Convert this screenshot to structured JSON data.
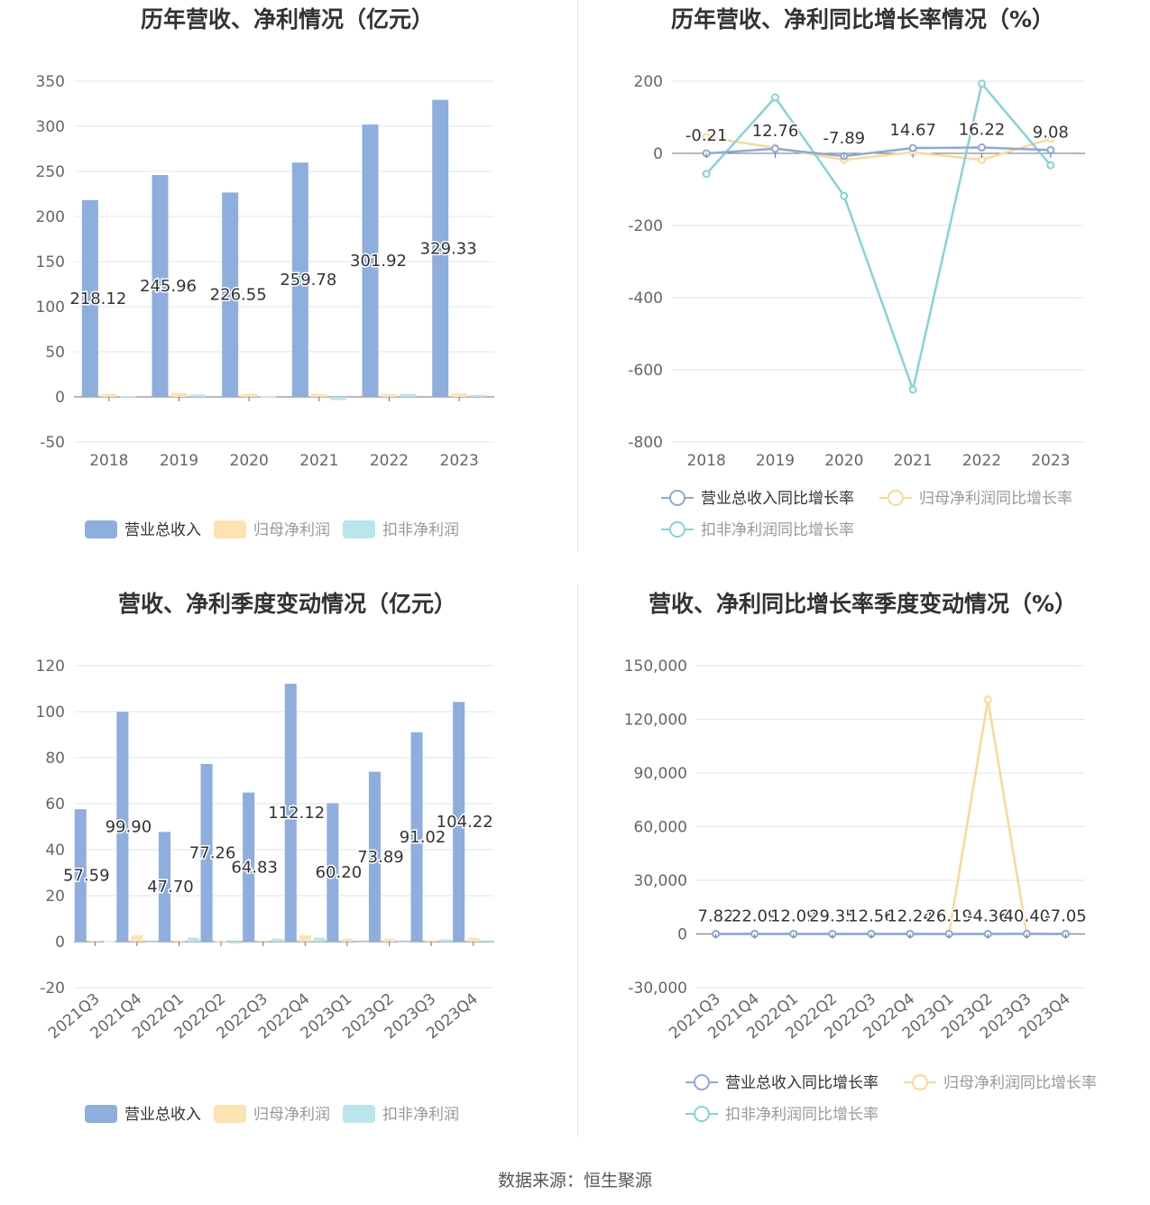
{
  "footer": {
    "source": "数据来源：恒生聚源"
  },
  "colors": {
    "revenue": "#8eaedd",
    "parent_profit": "#fde3b2",
    "deducted_profit": "#b9e6ea",
    "revenue_line": "#8da8db",
    "parent_line": "#fcd894",
    "deducted_line": "#86d3d6"
  },
  "chart_data": [
    {
      "type": "bar",
      "title": "历年营收、净利情况（亿元）",
      "categories": [
        "2018",
        "2019",
        "2020",
        "2021",
        "2022",
        "2023"
      ],
      "ylim": [
        -50,
        350
      ],
      "yticks": [
        "-50",
        "0",
        "50",
        "100",
        "150",
        "200",
        "250",
        "300",
        "350"
      ],
      "grid": true,
      "legend": "bottom",
      "series": [
        {
          "name": "营业总收入",
          "values": [
            218.12,
            245.96,
            226.55,
            259.78,
            301.92,
            329.33
          ],
          "labels": [
            "218.12",
            "245.96",
            "226.55",
            "259.78",
            "301.92",
            "329.33"
          ]
        },
        {
          "name": "归母净利润",
          "values": [
            3.2,
            4.3,
            3.4,
            3.5,
            3.0,
            4.0
          ]
        },
        {
          "name": "扣非净利润",
          "values": [
            0.8,
            2.5,
            0.7,
            -3.5,
            3.2,
            2.0
          ]
        }
      ]
    },
    {
      "type": "line",
      "title": "历年营收、净利同比增长率情况（%）",
      "categories": [
        "2018",
        "2019",
        "2020",
        "2021",
        "2022",
        "2023"
      ],
      "ylim": [
        -800,
        200
      ],
      "yticks": [
        "-800",
        "-600",
        "-400",
        "-200",
        "0",
        "200"
      ],
      "grid": true,
      "legend": "bottom",
      "series": [
        {
          "name": "营业总收入同比增长率",
          "values": [
            -0.21,
            12.76,
            -7.89,
            14.67,
            16.22,
            9.08
          ],
          "labels": [
            "-0.21",
            "12.76",
            "-7.89",
            "14.67",
            "16.22",
            "9.08"
          ]
        },
        {
          "name": "归母净利润同比增长率",
          "values": [
            45,
            15,
            -18,
            3,
            -18,
            40
          ]
        },
        {
          "name": "扣非净利润同比增长率",
          "values": [
            -57,
            155,
            -118,
            -655,
            193,
            -33
          ]
        }
      ]
    },
    {
      "type": "bar",
      "title": "营收、净利季度变动情况（亿元）",
      "categories": [
        "2021Q3",
        "2021Q4",
        "2022Q1",
        "2022Q2",
        "2022Q3",
        "2022Q4",
        "2023Q1",
        "2023Q2",
        "2023Q3",
        "2023Q4"
      ],
      "ylim": [
        -20,
        120
      ],
      "yticks": [
        "-20",
        "0",
        "20",
        "40",
        "60",
        "80",
        "100",
        "120"
      ],
      "grid": true,
      "legend": "bottom",
      "series": [
        {
          "name": "营业总收入",
          "values": [
            57.59,
            99.9,
            47.7,
            77.26,
            64.83,
            112.12,
            60.2,
            73.89,
            91.02,
            104.22
          ],
          "labels": [
            "57.59",
            "99.90",
            "47.70",
            "77.26",
            "64.83",
            "112.12",
            "60.20",
            "73.89",
            "91.02",
            "104.22"
          ]
        },
        {
          "name": "归母净利润",
          "values": [
            0.4,
            2.8,
            0.5,
            0.3,
            0.5,
            2.8,
            1.2,
            1.2,
            0.6,
            1.7
          ]
        },
        {
          "name": "扣非净利润",
          "values": [
            0.2,
            -0.4,
            1.7,
            -0.9,
            1.3,
            1.7,
            -0.2,
            -0.2,
            1.0,
            0.6
          ]
        }
      ]
    },
    {
      "type": "line",
      "title": "营收、净利同比增长率季度变动情况（%）",
      "categories": [
        "2021Q3",
        "2021Q4",
        "2022Q1",
        "2022Q2",
        "2022Q3",
        "2022Q4",
        "2023Q1",
        "2023Q2",
        "2023Q3",
        "2023Q4"
      ],
      "ylim": [
        -30000,
        150000
      ],
      "yticks": [
        "-30,000",
        "0",
        "30,000",
        "60,000",
        "90,000",
        "120,000",
        "150,000"
      ],
      "grid": true,
      "legend": "bottom",
      "series": [
        {
          "name": "营业总收入同比增长率",
          "values": [
            7.82,
            22.09,
            12.09,
            29.35,
            12.56,
            12.24,
            26.19,
            -4.36,
            40.4,
            -7.05
          ],
          "labels": [
            "7.82",
            "22.09",
            "12.09",
            "29.35",
            "12.56",
            "12.24",
            "26.19",
            "-4.36",
            "40.40",
            "-7.05"
          ]
        },
        {
          "name": "归母净利润同比增长率",
          "values": [
            20,
            150,
            -40,
            -80,
            60,
            20,
            80,
            131000,
            150,
            10
          ]
        },
        {
          "name": "扣非净利润同比增长率",
          "values": [
            30,
            90,
            40,
            -30,
            20,
            30,
            -60,
            60,
            40,
            20
          ]
        }
      ]
    }
  ]
}
